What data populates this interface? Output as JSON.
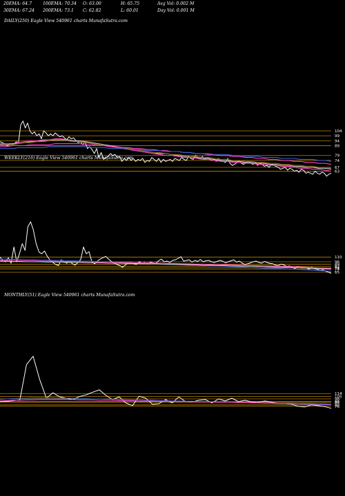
{
  "header": {
    "stats": [
      {
        "label": "20EMA: 64.7"
      },
      {
        "label": "100EMA: 70.34"
      },
      {
        "label": "O: 63.00"
      },
      {
        "label": "H: 65.75"
      },
      {
        "label": "Avg Vol: 0.002  M"
      },
      {
        "label": "30EMA: 67.24"
      },
      {
        "label": "200EMA: 73.1"
      },
      {
        "label": "C: 62.82"
      },
      {
        "label": "L: 60.01"
      },
      {
        "label": "Day Vol: 0.001  M"
      }
    ]
  },
  "colors": {
    "background": "#000000",
    "price": "#ffffff",
    "level_line": "#b8860b",
    "ema_short": "#3a5fcd",
    "ema_long": "#ff3ec8",
    "ema_mid": "#c8c8c8",
    "ema_brown": "#8b6914"
  },
  "chart_data": [
    {
      "type": "line",
      "title": "DAILY(250) Eagle  View  540961 charts MunafaSutra.com",
      "level_labels": [
        "104",
        "99",
        "94",
        "89",
        "79",
        "74",
        "67",
        "63"
      ],
      "levels": [
        104,
        99,
        94,
        89,
        79,
        74,
        67,
        63
      ],
      "ylim": [
        55,
        125
      ],
      "series": [
        {
          "values": [
            93,
            92,
            91,
            89,
            90,
            91,
            90,
            93,
            92,
            110,
            114,
            107,
            112,
            104,
            101,
            103,
            99,
            101,
            96,
            104,
            102,
            99,
            101,
            99,
            102,
            100,
            98,
            99,
            97,
            95,
            98,
            96,
            97,
            94,
            92,
            93,
            90,
            93,
            86,
            88,
            85,
            81,
            86,
            77,
            82,
            75,
            77,
            78,
            81,
            79,
            80,
            77,
            78,
            73,
            76,
            74,
            77,
            74,
            76,
            73,
            75,
            74,
            76,
            72,
            74,
            73,
            77,
            75,
            73,
            76,
            72,
            75,
            73,
            74,
            75,
            73,
            76,
            75,
            74,
            77,
            75,
            74,
            78,
            76,
            75,
            79,
            77,
            76,
            78,
            75,
            77,
            76,
            74,
            75,
            73,
            76,
            74,
            73,
            72,
            76,
            71,
            69,
            70,
            72,
            74,
            71,
            70,
            72,
            73,
            71,
            70,
            72,
            69,
            71,
            70,
            68,
            69,
            67,
            70,
            69,
            68,
            67,
            65,
            66,
            67,
            64,
            66,
            65,
            63,
            64,
            62,
            65,
            64,
            61,
            62,
            61,
            60,
            63,
            61,
            60,
            62,
            61,
            58,
            60,
            61
          ]
        },
        {
          "values": [
            91,
            91,
            91,
            92,
            93,
            94,
            94,
            95,
            95,
            96,
            96,
            95,
            94,
            93,
            92,
            91,
            90,
            89,
            88,
            87,
            86,
            85,
            84,
            83,
            82,
            81,
            80,
            79,
            79,
            78,
            77,
            77,
            76,
            75,
            75,
            74,
            73,
            73,
            72,
            72,
            71,
            71,
            70,
            70,
            69,
            69,
            68,
            68,
            67,
            66,
            66,
            65,
            65,
            64,
            63
          ]
        },
        {
          "values": [
            90,
            90,
            91,
            91,
            92,
            93,
            93,
            94,
            94,
            95,
            95,
            95,
            94,
            94,
            93,
            92,
            91,
            90,
            89,
            88,
            87,
            86,
            85,
            84,
            83,
            82,
            81,
            81,
            80,
            79,
            78,
            78,
            77,
            76,
            76,
            75,
            74,
            74,
            73,
            73,
            72,
            72,
            71,
            71,
            70,
            70,
            69,
            69,
            68,
            68,
            67,
            67,
            66,
            66,
            65
          ]
        },
        {
          "values": [
            89,
            90,
            90,
            91,
            92,
            92,
            93,
            93,
            94,
            94,
            94,
            94,
            93,
            93,
            92,
            91,
            90,
            89,
            88,
            87,
            86,
            86,
            85,
            84,
            83,
            82,
            82,
            81,
            80,
            80,
            79,
            78,
            78,
            77,
            77,
            76,
            75,
            75,
            74,
            74,
            73,
            73,
            72,
            72,
            71,
            71,
            70,
            70,
            69,
            69,
            68,
            68,
            67,
            67,
            66
          ]
        },
        {
          "values": [
            88,
            88,
            89,
            89,
            89,
            90,
            90,
            90,
            90,
            91,
            91,
            91,
            91,
            91,
            90,
            90,
            89,
            89,
            88,
            88,
            87,
            87,
            86,
            86,
            85,
            85,
            84,
            84,
            83,
            83,
            82,
            82,
            81,
            81,
            80,
            80,
            79,
            79,
            78,
            78,
            77,
            77,
            76,
            76,
            75,
            75,
            74,
            74,
            73,
            73,
            72,
            72,
            71,
            71,
            70
          ]
        },
        {
          "values": [
            86,
            86,
            86,
            87,
            87,
            87,
            87,
            87,
            88,
            88,
            88,
            88,
            88,
            88,
            88,
            87,
            87,
            87,
            86,
            86,
            86,
            85,
            85,
            85,
            84,
            84,
            84,
            83,
            83,
            83,
            82,
            82,
            81,
            81,
            81,
            80,
            80,
            80,
            79,
            79,
            78,
            78,
            78,
            77,
            77,
            77,
            76,
            76,
            76,
            75,
            75,
            75,
            74,
            74,
            73
          ]
        }
      ]
    },
    {
      "type": "line",
      "title": "WEEKLY(216) Eagle  View  540961 charts MunafaSutra.com",
      "level_labels": [
        "110",
        "96",
        "89",
        "83",
        "78",
        "74",
        "65"
      ],
      "levels": [
        110,
        96,
        89,
        83,
        78,
        74,
        65
      ],
      "ylim": [
        55,
        260
      ],
      "series": [
        {
          "values": [
            110,
            100,
            96,
            108,
            92,
            140,
            96,
            120,
            150,
            130,
            200,
            215,
            190,
            150,
            125,
            120,
            128,
            112,
            100,
            94,
            88,
            85,
            102,
            96,
            92,
            98,
            90,
            86,
            94,
            103,
            140,
            120,
            126,
            96,
            90,
            98,
            104,
            108,
            112,
            104,
            97,
            92,
            88,
            85,
            80,
            86,
            93,
            94,
            90,
            88,
            96,
            92,
            94,
            89,
            95,
            93,
            92,
            99,
            104,
            96,
            98,
            94,
            100,
            102,
            106,
            111,
            98,
            100,
            102,
            95,
            100,
            97,
            103,
            96,
            99,
            100,
            96,
            94,
            97,
            100,
            98,
            93,
            96,
            99,
            102,
            95,
            98,
            92,
            88,
            90,
            93,
            96,
            98,
            94,
            92,
            97,
            94,
            91,
            90,
            86,
            85,
            89,
            87,
            82,
            84,
            79,
            76,
            82,
            80,
            78,
            79,
            74,
            80,
            76,
            73,
            70,
            72,
            68,
            65,
            62
          ]
        },
        {
          "values": [
            104,
            104,
            103,
            103,
            102,
            102,
            101,
            101,
            100,
            100,
            99,
            99,
            98,
            98,
            97,
            96,
            95,
            95,
            94,
            93,
            92,
            92,
            91,
            90,
            89,
            88,
            88,
            87,
            86,
            86,
            85,
            84,
            84,
            83,
            82,
            81,
            80,
            79,
            78,
            77,
            76,
            76,
            75,
            74,
            73,
            72,
            71,
            70,
            69,
            68
          ]
        },
        {
          "values": [
            100,
            100,
            100,
            99,
            99,
            99,
            98,
            98,
            98,
            97,
            97,
            97,
            96,
            96,
            96,
            95,
            95,
            95,
            94,
            94,
            93,
            93,
            93,
            92,
            92,
            91,
            91,
            90,
            90,
            89,
            89,
            88,
            88,
            87,
            87,
            86,
            86,
            85,
            85,
            84,
            84,
            83,
            82,
            82,
            81,
            80,
            79,
            78,
            77,
            76
          ]
        },
        {
          "values": [
            98,
            98,
            97,
            97,
            96,
            96,
            96,
            95,
            95,
            95,
            94,
            94,
            94,
            93,
            93,
            93,
            92,
            92,
            92,
            91,
            91,
            90,
            90,
            90,
            89,
            89,
            88,
            88,
            87,
            87,
            86,
            86,
            85,
            85,
            84,
            84,
            83,
            83,
            82,
            82,
            81,
            80,
            80,
            79,
            78,
            78,
            77,
            76,
            75,
            74
          ]
        }
      ]
    },
    {
      "type": "line",
      "title": "MONTHLY(51) Eagle  View  540961 charts MunafaSutra.com",
      "level_labels": [
        "114",
        "105",
        "98",
        "90",
        "88",
        "80",
        "76"
      ],
      "levels": [
        114,
        105,
        98,
        90,
        88,
        80,
        76
      ],
      "ylim": [
        55,
        260
      ],
      "series": [
        {
          "values": [
            90,
            91,
            93,
            95,
            200,
            225,
            155,
            100,
            116,
            104,
            100,
            96,
            105,
            110,
            118,
            125,
            108,
            96,
            104,
            86,
            78,
            106,
            100,
            82,
            84,
            96,
            86,
            104,
            90,
            89,
            94,
            96,
            86,
            98,
            92,
            100,
            90,
            94,
            89,
            88,
            92,
            88,
            84,
            84,
            82,
            76,
            74,
            80,
            78,
            75,
            70
          ]
        },
        {
          "values": [
            96,
            98,
            99,
            100,
            100,
            101,
            101,
            101,
            101,
            100,
            100,
            100,
            99,
            99,
            98,
            98,
            97,
            97,
            96,
            96,
            95,
            95,
            94,
            94,
            93,
            93,
            92,
            92,
            91,
            91,
            90,
            90,
            89,
            89,
            88,
            88,
            87,
            87,
            86,
            86,
            85,
            85,
            84,
            84,
            83,
            83,
            82,
            82,
            81,
            81,
            80
          ]
        },
        {
          "values": [
            92,
            93,
            94,
            94,
            95,
            95,
            96,
            96,
            96,
            96,
            96,
            96,
            95,
            95,
            95,
            94,
            94,
            94,
            93,
            93,
            93,
            92,
            92,
            92,
            91,
            91,
            91,
            90,
            90,
            90,
            89,
            89,
            89,
            88,
            88,
            88,
            87,
            87,
            87,
            86,
            86,
            86,
            85,
            85,
            85,
            84,
            84,
            84,
            83,
            83,
            82
          ]
        }
      ]
    }
  ]
}
